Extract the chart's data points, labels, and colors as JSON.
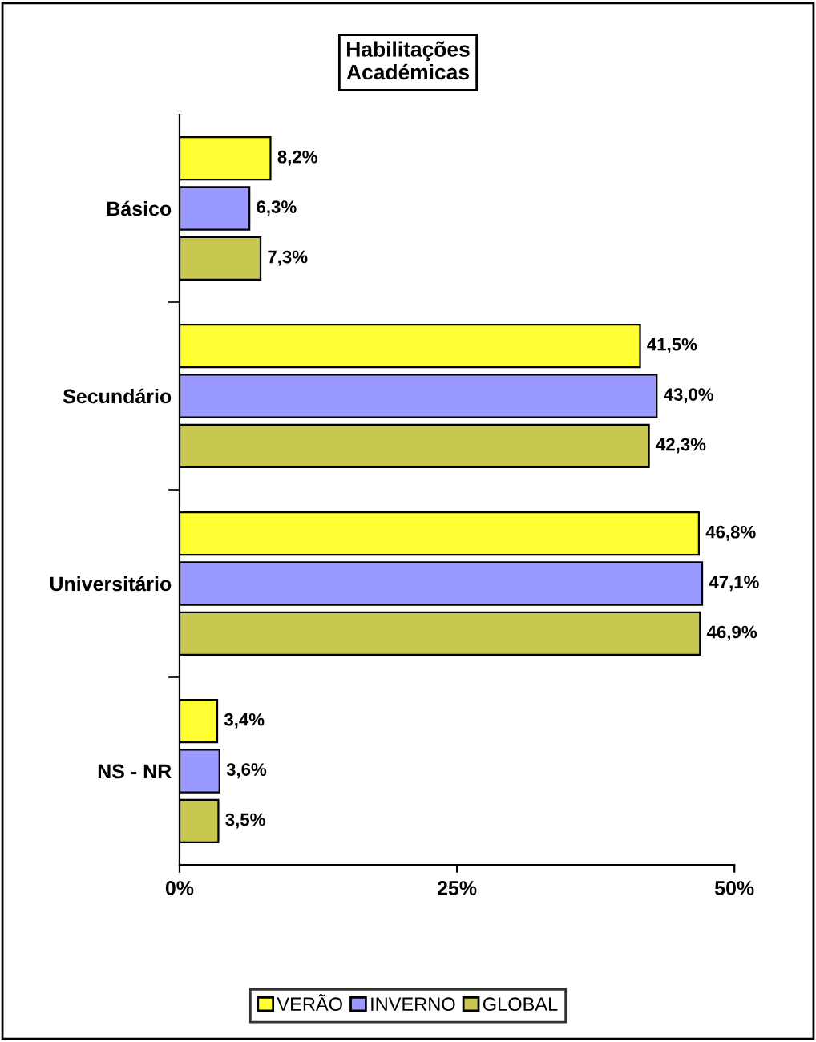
{
  "chart_data": {
    "type": "bar",
    "orientation": "horizontal",
    "title": "Habilitações\nAcadémicas",
    "categories": [
      "Básico",
      "Secundário",
      "Universitário",
      "NS - NR"
    ],
    "series": [
      {
        "name": "VERÃO",
        "color": "#ffff33",
        "values": [
          8.2,
          41.5,
          46.8,
          3.4
        ],
        "value_labels": [
          "8,2%",
          "41,5%",
          "46,8%",
          "3,4%"
        ]
      },
      {
        "name": "INVERNO",
        "color": "#9999ff",
        "values": [
          6.3,
          43.0,
          47.1,
          3.6
        ],
        "value_labels": [
          "6,3%",
          "43,0%",
          "47,1%",
          "3,6%"
        ]
      },
      {
        "name": "GLOBAL",
        "color": "#c8c850",
        "values": [
          7.3,
          42.3,
          46.9,
          3.5
        ],
        "value_labels": [
          "7,3%",
          "42,3%",
          "46,9%",
          "3,5%"
        ]
      }
    ],
    "xlim": [
      0,
      50
    ],
    "xticks": [
      {
        "value": 0,
        "label": "0%"
      },
      {
        "value": 25,
        "label": "25%"
      },
      {
        "value": 50,
        "label": "50%"
      }
    ],
    "grid": false,
    "legend": "bottom"
  }
}
